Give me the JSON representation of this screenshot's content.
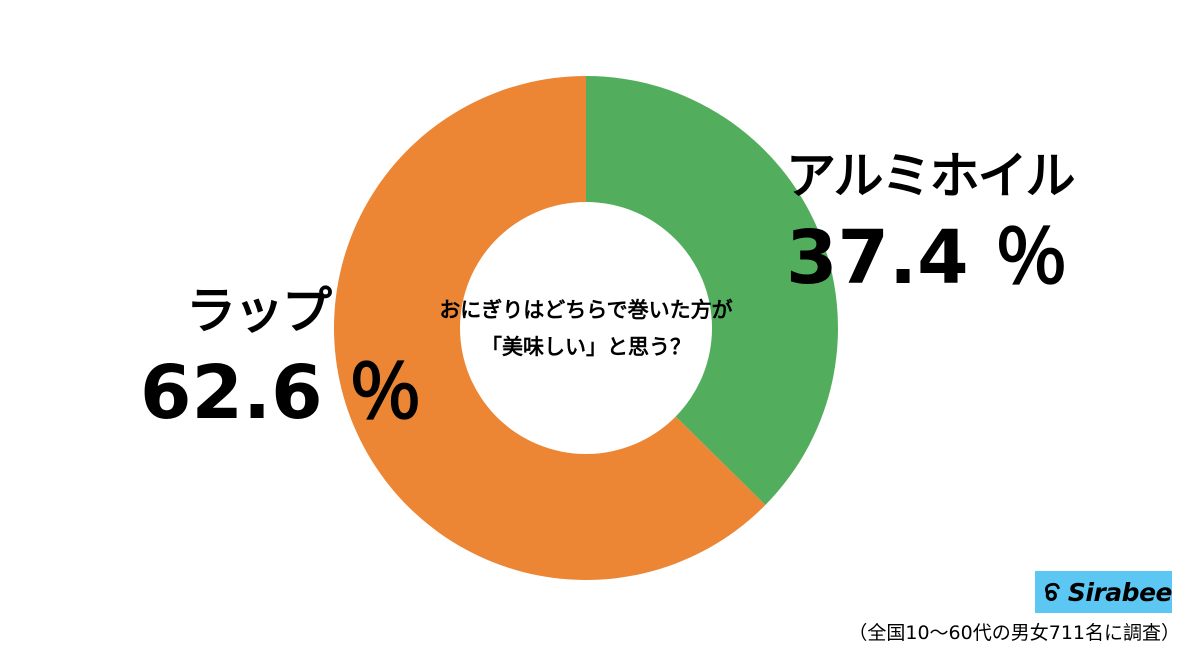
{
  "chart_data": {
    "type": "pie",
    "title": "おにぎりはどちらで巻いた方が「美味しい」と思う？",
    "title_lines": [
      "おにぎりはどちらで巻いた方が",
      "「美味しい」と思う？"
    ],
    "series": [
      {
        "name": "アルミホイル",
        "value": 37.4,
        "value_label": "37.4 ％",
        "color": "#52ae5d"
      },
      {
        "name": "ラップ",
        "value": 62.6,
        "value_label": "62.6 ％",
        "color": "#ed8634"
      }
    ],
    "unit": "%",
    "donut": true
  },
  "brand": {
    "logo_text": "Sirabee",
    "logo_bg": "#5bc7f2"
  },
  "footnote": "（全国10〜60代の男女711名に調査）"
}
